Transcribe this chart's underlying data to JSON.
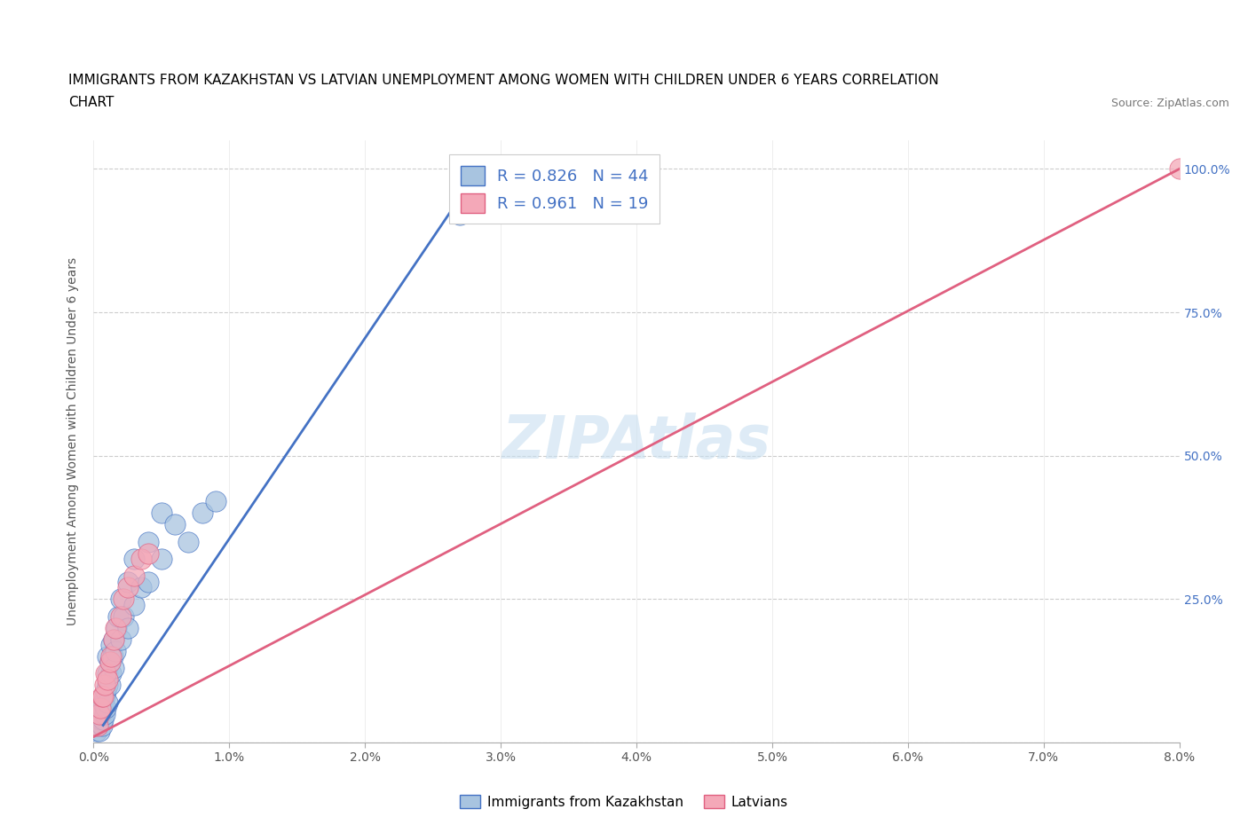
{
  "title_line1": "IMMIGRANTS FROM KAZAKHSTAN VS LATVIAN UNEMPLOYMENT AMONG WOMEN WITH CHILDREN UNDER 6 YEARS CORRELATION",
  "title_line2": "CHART",
  "source": "Source: ZipAtlas.com",
  "ylabel": "Unemployment Among Women with Children Under 6 years",
  "xlim": [
    0.0,
    0.08
  ],
  "ylim": [
    0.0,
    1.05
  ],
  "xticks": [
    0.0,
    0.01,
    0.02,
    0.03,
    0.04,
    0.05,
    0.06,
    0.07,
    0.08
  ],
  "xticklabels": [
    "0.0%",
    "1.0%",
    "2.0%",
    "3.0%",
    "4.0%",
    "5.0%",
    "6.0%",
    "7.0%",
    "8.0%"
  ],
  "yticks": [
    0.0,
    0.25,
    0.5,
    0.75,
    1.0
  ],
  "yticklabels_right": [
    "",
    "25.0%",
    "50.0%",
    "75.0%",
    "100.0%"
  ],
  "blue_color": "#a8c4e0",
  "pink_color": "#f4a8b8",
  "blue_line_color": "#4472c4",
  "pink_line_color": "#e06080",
  "R_blue": 0.826,
  "N_blue": 44,
  "R_pink": 0.961,
  "N_pink": 19,
  "legend_label_blue": "Immigrants from Kazakhstan",
  "legend_label_pink": "Latvians",
  "blue_scatter_x": [
    0.0002,
    0.0003,
    0.0004,
    0.0005,
    0.0005,
    0.0006,
    0.0006,
    0.0007,
    0.0007,
    0.0008,
    0.0008,
    0.0009,
    0.0009,
    0.001,
    0.001,
    0.001,
    0.001,
    0.0012,
    0.0012,
    0.0013,
    0.0013,
    0.0014,
    0.0015,
    0.0015,
    0.0016,
    0.0017,
    0.0018,
    0.002,
    0.002,
    0.0022,
    0.0025,
    0.0025,
    0.003,
    0.003,
    0.0035,
    0.004,
    0.004,
    0.005,
    0.005,
    0.006,
    0.007,
    0.008,
    0.009,
    0.027
  ],
  "blue_scatter_y": [
    0.02,
    0.03,
    0.02,
    0.04,
    0.05,
    0.03,
    0.06,
    0.04,
    0.07,
    0.05,
    0.08,
    0.06,
    0.09,
    0.07,
    0.1,
    0.12,
    0.15,
    0.1,
    0.14,
    0.12,
    0.17,
    0.15,
    0.13,
    0.18,
    0.16,
    0.2,
    0.22,
    0.18,
    0.25,
    0.22,
    0.2,
    0.28,
    0.24,
    0.32,
    0.27,
    0.28,
    0.35,
    0.32,
    0.4,
    0.38,
    0.35,
    0.4,
    0.42,
    0.92
  ],
  "pink_scatter_x": [
    0.0003,
    0.0004,
    0.0005,
    0.0006,
    0.0007,
    0.0008,
    0.0009,
    0.001,
    0.0012,
    0.0013,
    0.0015,
    0.0016,
    0.002,
    0.0022,
    0.0025,
    0.003,
    0.0035,
    0.004,
    0.08
  ],
  "pink_scatter_y": [
    0.03,
    0.05,
    0.06,
    0.08,
    0.08,
    0.1,
    0.12,
    0.11,
    0.14,
    0.15,
    0.18,
    0.2,
    0.22,
    0.25,
    0.27,
    0.29,
    0.32,
    0.33,
    1.0
  ],
  "blue_trendline_x": [
    0.0007,
    0.027
  ],
  "blue_trendline_y": [
    0.03,
    0.95
  ],
  "pink_trendline_x": [
    0.0,
    0.08
  ],
  "pink_trendline_y": [
    0.01,
    1.0
  ]
}
